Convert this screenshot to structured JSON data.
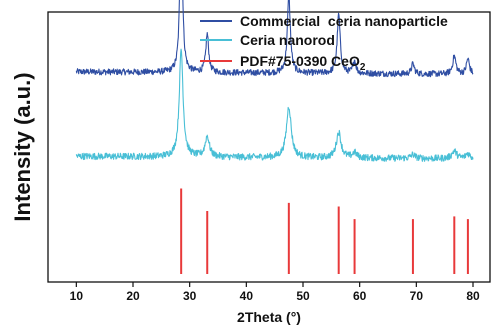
{
  "chart_data": {
    "type": "line",
    "xlabel": "2Theta (°)",
    "ylabel": "Intensity (a.u.)",
    "xlim": [
      5,
      83
    ],
    "xticks": [
      10,
      20,
      30,
      40,
      50,
      60,
      70,
      80
    ],
    "grid": false,
    "legend_position": "top-right",
    "series": [
      {
        "name": "Commercial  ceria nanoparticle",
        "color": "#2f4ea3",
        "baseline": 0.79,
        "noise": 0.012,
        "peaks": [
          {
            "x": 28.5,
            "height": 0.62,
            "width": 0.28
          },
          {
            "x": 33.1,
            "height": 0.15,
            "width": 0.3
          },
          {
            "x": 47.5,
            "height": 0.3,
            "width": 0.32
          },
          {
            "x": 56.3,
            "height": 0.23,
            "width": 0.32
          },
          {
            "x": 59.1,
            "height": 0.05,
            "width": 0.3
          },
          {
            "x": 69.4,
            "height": 0.04,
            "width": 0.3
          },
          {
            "x": 76.7,
            "height": 0.07,
            "width": 0.35
          },
          {
            "x": 79.1,
            "height": 0.06,
            "width": 0.32
          }
        ]
      },
      {
        "name": "Ceria nanorod",
        "color": "#49bfd6",
        "baseline": 0.46,
        "noise": 0.013,
        "peaks": [
          {
            "x": 28.5,
            "height": 0.42,
            "width": 0.4
          },
          {
            "x": 33.1,
            "height": 0.08,
            "width": 0.45
          },
          {
            "x": 47.5,
            "height": 0.2,
            "width": 0.5
          },
          {
            "x": 56.3,
            "height": 0.1,
            "width": 0.5
          },
          {
            "x": 59.1,
            "height": 0.02,
            "width": 0.45
          },
          {
            "x": 69.4,
            "height": 0.015,
            "width": 0.45
          },
          {
            "x": 76.7,
            "height": 0.03,
            "width": 0.5
          },
          {
            "x": 79.1,
            "height": 0.02,
            "width": 0.45
          }
        ]
      }
    ],
    "reference": {
      "name_prefix": "PDF#75-0390 CeO",
      "name_subscript": "2",
      "color": "#e8393a",
      "baseline": 0.0,
      "lines": [
        {
          "x": 28.5,
          "intensity": 0.95
        },
        {
          "x": 33.1,
          "intensity": 0.7
        },
        {
          "x": 47.5,
          "intensity": 0.79
        },
        {
          "x": 56.3,
          "intensity": 0.75
        },
        {
          "x": 59.1,
          "intensity": 0.61
        },
        {
          "x": 69.4,
          "intensity": 0.61
        },
        {
          "x": 76.7,
          "intensity": 0.64
        },
        {
          "x": 79.1,
          "intensity": 0.61
        }
      ]
    }
  }
}
